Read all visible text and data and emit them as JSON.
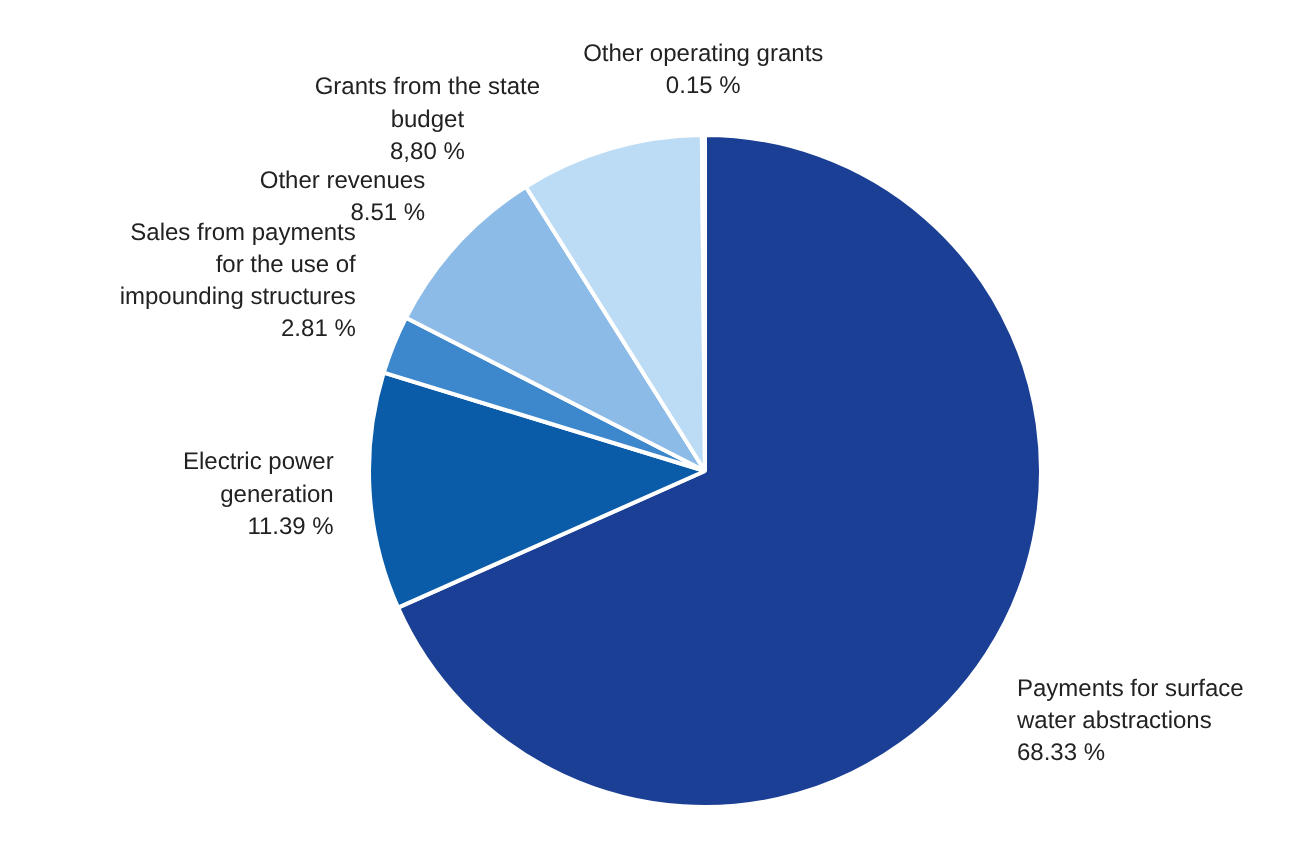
{
  "chart_data": {
    "type": "pie",
    "categories": [
      "Payments for surface water abstractions",
      "Electric power generation",
      "Sales from payments for the use of impounding structures",
      "Other revenues",
      "Grants from the state budget",
      "Other operating grants"
    ],
    "values": [
      68.33,
      11.39,
      2.81,
      8.51,
      8.8,
      0.15
    ],
    "value_labels": [
      "68.33 %",
      "11.39 %",
      "2.81 %",
      "8.51 %",
      "8,80 %",
      "0.15 %"
    ],
    "colors": [
      "#1a3f94",
      "#0a5ca8",
      "#3d87cc",
      "#8bbbe6",
      "#bcdcf5",
      "#d6e9f8"
    ]
  }
}
